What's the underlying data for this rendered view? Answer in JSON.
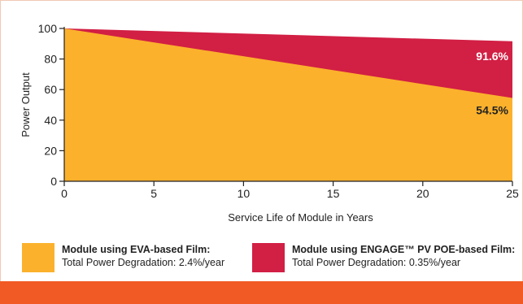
{
  "chart_data": {
    "type": "area",
    "x": [
      0,
      25
    ],
    "series": [
      {
        "name": "Module using ENGAGE™ PV POE-based Film",
        "values": [
          100,
          91.6
        ],
        "color": "#d21f44",
        "end_label": "91.6%"
      },
      {
        "name": "Module using EVA-based Film",
        "values": [
          100,
          54.5
        ],
        "color": "#fbb12c",
        "end_label": "54.5%"
      }
    ],
    "xlabel": "Service Life of Module in Years",
    "ylabel": "Power Output",
    "xlim": [
      0,
      25
    ],
    "ylim": [
      0,
      100
    ],
    "xticks": [
      0,
      5,
      10,
      15,
      20,
      25
    ],
    "yticks": [
      0,
      20,
      40,
      60,
      80,
      100
    ],
    "grid": false
  },
  "legend": {
    "items": [
      {
        "title": "Module using EVA-based Film:",
        "subtitle": "Total Power Degradation: 2.4%/year",
        "color": "#fbb12c"
      },
      {
        "title": "Module using ENGAGE™ PV POE-based Film:",
        "subtitle": "Total Power Degradation: 0.35%/year",
        "color": "#d21f44"
      }
    ]
  },
  "colors": {
    "footer_bar": "#f15a24",
    "frame_border": "#f1c9b4",
    "axis": "#222222"
  }
}
